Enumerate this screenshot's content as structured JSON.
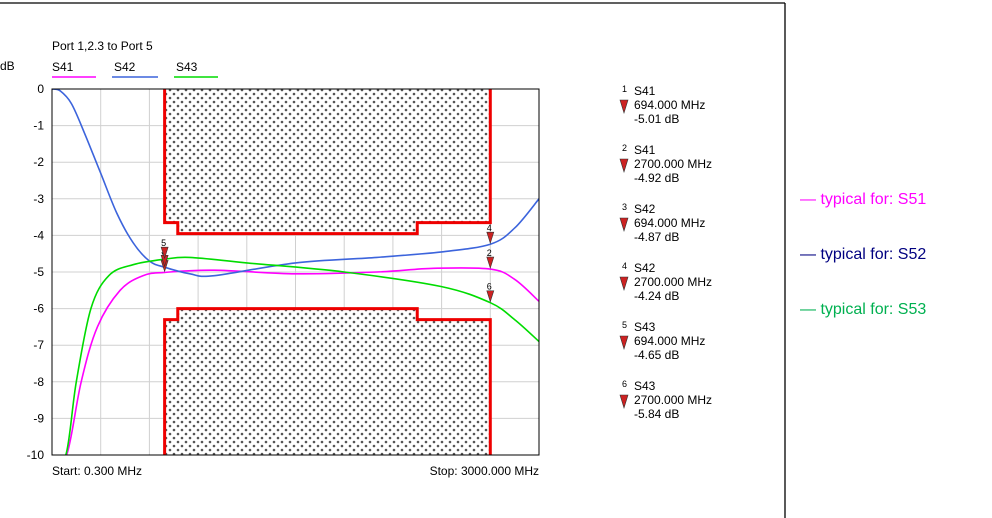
{
  "chart_data": {
    "type": "line",
    "title": "Port 1,2.3 to Port 5",
    "ylabel": "dB",
    "x_unit": "MHz",
    "xlim": [
      0.3,
      3000.0
    ],
    "ylim": [
      -10,
      0
    ],
    "yticks": [
      0,
      -1,
      -2,
      -3,
      -4,
      -5,
      -6,
      -7,
      -8,
      -9,
      -10
    ],
    "start_label": "Start: 0.300 MHz",
    "stop_label": "Stop: 3000.000 MHz",
    "grid": true,
    "legend_position": "top",
    "series": [
      {
        "name": "S41",
        "color": "#ff00ff",
        "points": [
          [
            0.3,
            -10
          ],
          [
            90,
            -10
          ],
          [
            180,
            -8
          ],
          [
            280,
            -6.5
          ],
          [
            420,
            -5.5
          ],
          [
            560,
            -5.1
          ],
          [
            694,
            -5.01
          ],
          [
            1000,
            -4.95
          ],
          [
            1500,
            -5.05
          ],
          [
            2000,
            -5.0
          ],
          [
            2350,
            -4.9
          ],
          [
            2700,
            -4.92
          ],
          [
            2850,
            -5.2
          ],
          [
            3000,
            -5.8
          ]
        ]
      },
      {
        "name": "S42",
        "color": "#3c64dc",
        "points": [
          [
            0.3,
            0
          ],
          [
            50,
            -0.05
          ],
          [
            120,
            -0.4
          ],
          [
            200,
            -1.2
          ],
          [
            300,
            -2.3
          ],
          [
            400,
            -3.4
          ],
          [
            500,
            -4.2
          ],
          [
            600,
            -4.7
          ],
          [
            694,
            -4.87
          ],
          [
            850,
            -5.05
          ],
          [
            1000,
            -5.1
          ],
          [
            1500,
            -4.75
          ],
          [
            2000,
            -4.6
          ],
          [
            2400,
            -4.45
          ],
          [
            2700,
            -4.24
          ],
          [
            2850,
            -3.8
          ],
          [
            3000,
            -3.0
          ]
        ]
      },
      {
        "name": "S43",
        "color": "#00dc00",
        "points": [
          [
            0.3,
            -10
          ],
          [
            85,
            -10
          ],
          [
            150,
            -8
          ],
          [
            240,
            -6
          ],
          [
            350,
            -5.1
          ],
          [
            500,
            -4.8
          ],
          [
            694,
            -4.65
          ],
          [
            850,
            -4.6
          ],
          [
            1200,
            -4.75
          ],
          [
            1800,
            -5.0
          ],
          [
            2400,
            -5.4
          ],
          [
            2700,
            -5.84
          ],
          [
            2850,
            -6.3
          ],
          [
            3000,
            -6.9
          ]
        ]
      }
    ],
    "markers": [
      {
        "id": "1",
        "trace": "S41",
        "freq": "694.000 MHz",
        "value": "-5.01 dB",
        "x": 694,
        "y": -5.01
      },
      {
        "id": "2",
        "trace": "S41",
        "freq": "2700.000 MHz",
        "value": "-4.92 dB",
        "x": 2700,
        "y": -4.92
      },
      {
        "id": "3",
        "trace": "S42",
        "freq": "694.000 MHz",
        "value": "-4.87 dB",
        "x": 694,
        "y": -4.87
      },
      {
        "id": "4",
        "trace": "S42",
        "freq": "2700.000 MHz",
        "value": "-4.24 dB",
        "x": 2700,
        "y": -4.24
      },
      {
        "id": "5",
        "trace": "S43",
        "freq": "694.000 MHz",
        "value": "-4.65 dB",
        "x": 694,
        "y": -4.65
      },
      {
        "id": "6",
        "trace": "S43",
        "freq": "2700.000 MHz",
        "value": "-5.84 dB",
        "x": 2700,
        "y": -5.84
      }
    ],
    "marker_color": "#cc2222",
    "limit_color": "#ee0000",
    "upper_limit": [
      [
        694,
        0
      ],
      [
        694,
        -3.65
      ],
      [
        775,
        -3.65
      ],
      [
        775,
        -3.95
      ],
      [
        2250,
        -3.95
      ],
      [
        2250,
        -3.65
      ],
      [
        2700,
        -3.65
      ],
      [
        2700,
        0
      ]
    ],
    "lower_limit": [
      [
        694,
        -10
      ],
      [
        694,
        -6.3
      ],
      [
        775,
        -6.3
      ],
      [
        775,
        -6.0
      ],
      [
        2250,
        -6.0
      ],
      [
        2250,
        -6.3
      ],
      [
        2700,
        -6.3
      ],
      [
        2700,
        -10
      ]
    ]
  },
  "annotations": [
    {
      "text": "— typical for: S51",
      "color": "#ff00ff"
    },
    {
      "text": "— typical for: S52",
      "color": "#000080"
    },
    {
      "text": "— typical for: S53",
      "color": "#00b050"
    }
  ]
}
